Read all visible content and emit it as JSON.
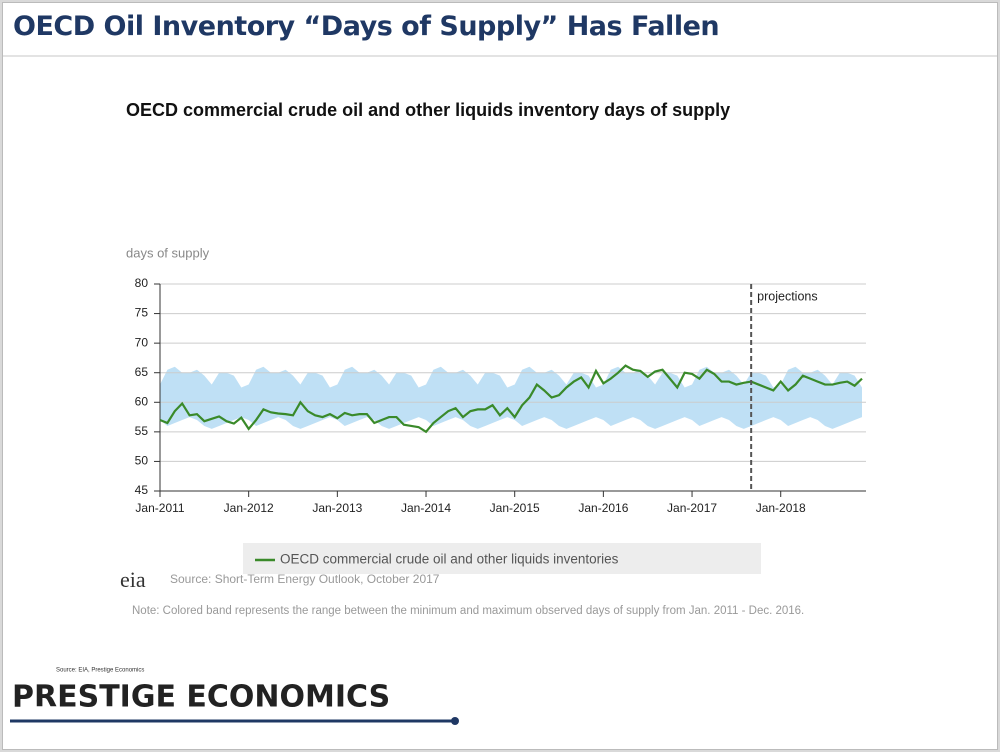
{
  "header": {
    "title": "OECD Oil Inventory “Days of Supply” Has Fallen"
  },
  "chart_data": {
    "type": "line",
    "title": "OECD commercial crude oil and other liquids inventory days of supply",
    "ylabel": "days of supply",
    "xlim": [
      0,
      95
    ],
    "xticks": [
      {
        "value": 0,
        "label": "Jan-2011"
      },
      {
        "value": 12,
        "label": "Jan-2012"
      },
      {
        "value": 24,
        "label": "Jan-2013"
      },
      {
        "value": 36,
        "label": "Jan-2014"
      },
      {
        "value": 48,
        "label": "Jan-2015"
      },
      {
        "value": 60,
        "label": "Jan-2016"
      },
      {
        "value": 72,
        "label": "Jan-2017"
      },
      {
        "value": 84,
        "label": "Jan-2018"
      }
    ],
    "ylim": [
      45,
      80
    ],
    "yticks": [
      45,
      50,
      55,
      60,
      65,
      70,
      75,
      80
    ],
    "grid": true,
    "series": [
      {
        "name": "OECD commercial crude oil and other liquids inventories",
        "color": "#3a8a2a",
        "values": [
          57,
          56.5,
          58.5,
          59.8,
          57.8,
          58,
          56.8,
          57.2,
          57.6,
          56.8,
          56.4,
          57.4,
          55.5,
          57,
          58.8,
          58.3,
          58.1,
          58,
          57.8,
          60,
          58.5,
          57.8,
          57.5,
          58,
          57.3,
          58.2,
          57.8,
          58,
          58,
          56.5,
          57,
          57.5,
          57.5,
          56.2,
          56,
          55.8,
          55,
          56.5,
          57.5,
          58.5,
          59,
          57.5,
          58.5,
          58.8,
          58.8,
          59.5,
          57.8,
          59,
          57.5,
          59.5,
          60.8,
          63,
          62,
          60.8,
          61.2,
          62.5,
          63.5,
          64.2,
          62.5,
          65.3,
          63.2,
          64,
          65,
          66.2,
          65.5,
          65.3,
          64.3,
          65.2,
          65.5,
          64,
          62.5,
          65,
          64.8,
          64,
          65.5,
          64.8,
          63.5,
          63.5,
          63,
          63.3,
          63.5,
          63,
          62.5,
          62,
          63.5,
          62,
          63,
          64.5,
          64,
          63.5,
          63,
          63,
          63.3,
          63.5,
          62.8,
          64
        ]
      }
    ],
    "band": {
      "color": "#bfe0f5",
      "max": [
        63,
        65.5,
        66,
        65,
        65,
        65.5,
        64.5,
        63,
        65,
        65,
        64.5,
        62.5,
        63,
        65.5,
        66,
        65,
        65,
        65.5,
        64.5,
        63,
        65,
        65,
        64.5,
        62.5,
        63,
        65.5,
        66,
        65,
        65,
        65.5,
        64.5,
        63,
        65,
        65,
        64.5,
        62.5,
        63,
        65.5,
        66,
        65,
        65,
        65.5,
        64.5,
        63,
        65,
        65,
        64.5,
        62.5,
        63,
        65.5,
        66,
        65,
        65,
        65.5,
        64.5,
        63,
        65,
        65,
        64.5,
        62.5,
        63,
        65.5,
        66,
        65,
        65,
        65.5,
        64.5,
        63,
        65,
        65,
        64.5,
        62.5,
        63,
        65.5,
        66,
        65,
        65,
        65.5,
        64.5,
        63,
        65,
        65,
        64.5,
        62.5,
        63,
        65.5,
        66,
        65,
        65,
        65.5,
        64.5,
        63,
        65,
        65,
        64.5,
        62.5
      ],
      "min": [
        57,
        56,
        56.5,
        57,
        57.5,
        57,
        56,
        55.5,
        56,
        56.5,
        57,
        57.5,
        57,
        56,
        56.5,
        57,
        57.5,
        57,
        56,
        55.5,
        56,
        56.5,
        57,
        57.5,
        57,
        56,
        56.5,
        57,
        57.5,
        57,
        56,
        55.5,
        56,
        56.5,
        57,
        57.5,
        57,
        56,
        56.5,
        57,
        57.5,
        57,
        56,
        55.5,
        56,
        56.5,
        57,
        57.5,
        57,
        56,
        56.5,
        57,
        57.5,
        57,
        56,
        55.5,
        56,
        56.5,
        57,
        57.5,
        57,
        56,
        56.5,
        57,
        57.5,
        57,
        56,
        55.5,
        56,
        56.5,
        57,
        57.5,
        57,
        56,
        56.5,
        57,
        57.5,
        57,
        56,
        55.5,
        56,
        56.5,
        57,
        57.5,
        57,
        56,
        56.5,
        57,
        57.5,
        57,
        56,
        55.5,
        56,
        56.5,
        57,
        57.5
      ]
    },
    "annotation": {
      "text": "projections",
      "x": 80
    },
    "logo": "eia",
    "source": "Source: Short-Term Energy Outlook, October 2017",
    "note": "Note: Colored band represents the range between the minimum and maximum observed days of supply from Jan. 2011 - Dec. 2016."
  },
  "footer": {
    "source": "Source: EIA, Prestige Economics",
    "brand": "PRESTIGE ECONOMICS"
  }
}
